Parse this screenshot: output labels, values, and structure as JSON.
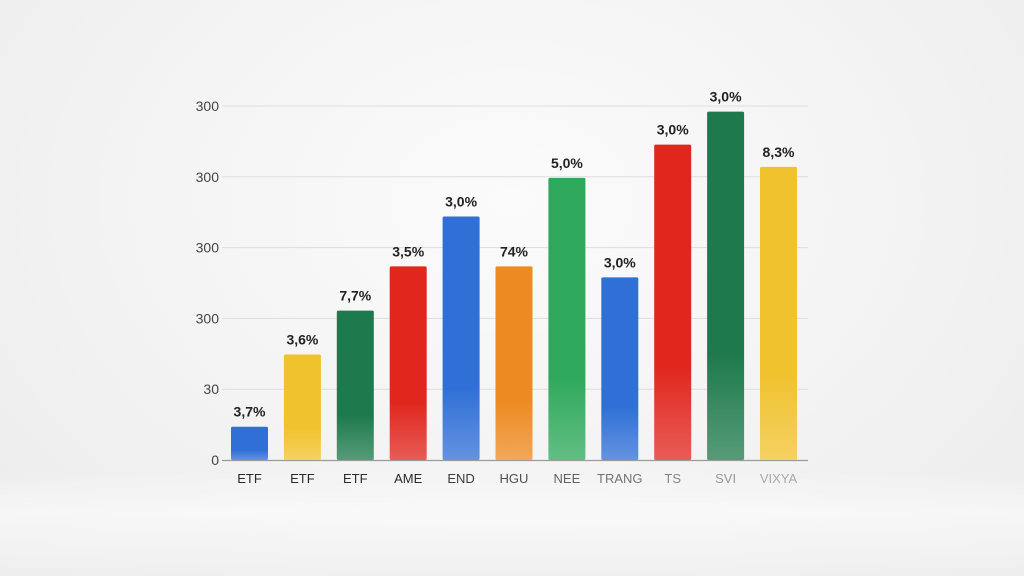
{
  "chart_data": {
    "type": "bar",
    "title": "",
    "xlabel": "",
    "ylabel": "",
    "y_tick_labels": [
      "0",
      "30",
      "300",
      "300",
      "300",
      "300"
    ],
    "grid": true,
    "legend": "none",
    "categories": [
      "ETF",
      "ETF",
      "ETF",
      "AME",
      "END",
      "HGU",
      "NEE",
      "TRANG",
      "TS",
      "SVI",
      "VIXYA"
    ],
    "values": [
      9.4,
      29.8,
      42.2,
      54.7,
      68.8,
      54.7,
      79.7,
      51.6,
      89.1,
      98.4,
      82.8
    ],
    "ylim": [
      0,
      100
    ],
    "data_labels": [
      "3,7%",
      "3,6%",
      "7,7%",
      "3,5%",
      "3,0%",
      "74%",
      "5,0%",
      "3,0%",
      "3,0%",
      "3,0%",
      "8,3%"
    ],
    "colors": [
      "#2f6fd6",
      "#f0c22e",
      "#1e7a4c",
      "#e0261d",
      "#2f6fd6",
      "#ee8a22",
      "#2ea85a",
      "#2f6fd6",
      "#e0261d",
      "#1e7a4c",
      "#f0c22e"
    ]
  }
}
